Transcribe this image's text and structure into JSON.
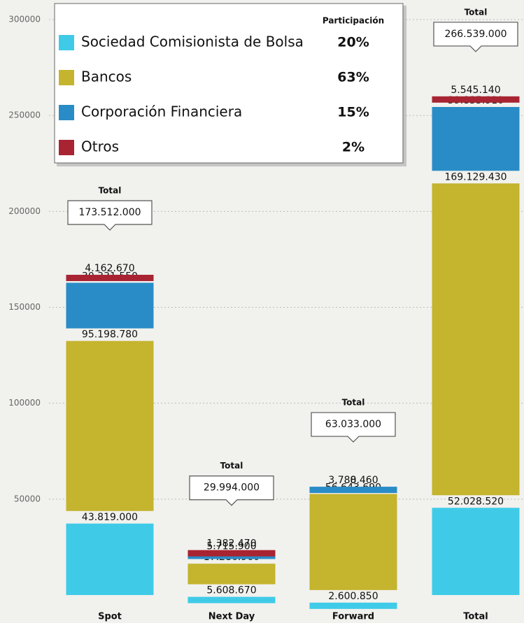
{
  "chart_data": {
    "type": "stacked_bar",
    "categories": [
      "Spot",
      "Next Day",
      "Forward",
      "Total"
    ],
    "series": [
      {
        "name": "Sociedad Comisionista de Bolsa",
        "color": "#3fcbe8",
        "values": [
          43819,
          5608.67,
          2600.85,
          52028.52
        ],
        "value_labels": [
          "43.819.000",
          "5.608.670",
          "2.600.850",
          "52.028.520"
        ]
      },
      {
        "name": "Bancos",
        "color": "#c4b42e",
        "values": [
          95198.78,
          17286.96,
          56643.69,
          169129.43
        ],
        "value_labels": [
          "95.198.780",
          "17.286.960",
          "56.643.690",
          "169.129.430"
        ]
      },
      {
        "name": "Corporación Financiera",
        "color": "#2a8cc6",
        "values": [
          30331.55,
          5715.9,
          3788.46,
          39835.91
        ],
        "value_labels": [
          "30.331.550",
          "5.715.900",
          "3.788.460",
          "39.835.910"
        ]
      },
      {
        "name": "Otros",
        "color": "#a82432",
        "values": [
          4162.67,
          1382.47,
          0,
          5545.14
        ],
        "value_labels": [
          "4.162.670",
          "1.382.470",
          "0",
          "5.545.140"
        ]
      }
    ],
    "total_label": "Total",
    "totals": [
      173512,
      29994,
      63033,
      266539
    ],
    "total_labels": [
      "173.512.000",
      "29.994.000",
      "63.033.000",
      "266.539.000"
    ],
    "legend_header": "Participación",
    "shares": [
      20,
      63,
      15,
      2
    ],
    "share_labels": [
      "20%",
      "63%",
      "15%",
      "2%"
    ],
    "ylim": [
      0,
      300000
    ],
    "yticks": [
      50000,
      100000,
      150000,
      200000,
      250000,
      300000
    ],
    "grid": true
  }
}
